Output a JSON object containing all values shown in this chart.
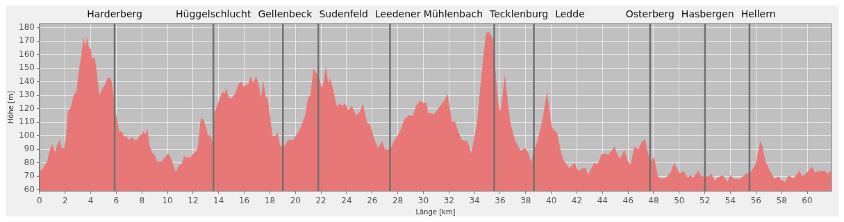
{
  "chart_data": {
    "type": "area",
    "xlabel": "Länge [km]",
    "ylabel": "Höhe [m]",
    "xlim": [
      0,
      61.9
    ],
    "ylim": [
      59,
      183
    ],
    "xticks": [
      0,
      2,
      4,
      6,
      8,
      10,
      12,
      14,
      16,
      18,
      20,
      22,
      24,
      26,
      28,
      30,
      32,
      34,
      36,
      38,
      40,
      42,
      44,
      46,
      48,
      50,
      52,
      54,
      56,
      58,
      60
    ],
    "yticks": [
      60,
      70,
      80,
      90,
      100,
      110,
      120,
      130,
      140,
      150,
      160,
      170,
      180
    ],
    "grid": true,
    "legend": false,
    "x": [
      0,
      0.2,
      0.6,
      0.76,
      0.98,
      1.12,
      1.2,
      1.36,
      1.57,
      1.72,
      1.93,
      2.06,
      2.22,
      2.44,
      2.66,
      2.9,
      3.02,
      3.24,
      3.44,
      3.56,
      3.71,
      3.83,
      4.01,
      4.1,
      4.32,
      4.5,
      4.68,
      4.92,
      5.06,
      5.33,
      5.52,
      5.64,
      5.82,
      6.0,
      6.24,
      6.46,
      6.6,
      6.76,
      6.96,
      7.14,
      7.27,
      7.4,
      7.63,
      7.81,
      7.99,
      8.14,
      8.26,
      8.44,
      8.59,
      8.84,
      8.99,
      9.2,
      9.57,
      9.71,
      10.07,
      10.34,
      10.65,
      10.89,
      11.1,
      11.3,
      11.52,
      11.79,
      12.03,
      12.2,
      12.35,
      12.46,
      12.6,
      12.82,
      13.06,
      13.15,
      13.33,
      13.51,
      13.69,
      13.87,
      14.09,
      14.32,
      14.45,
      14.59,
      14.81,
      15.04,
      15.32,
      15.59,
      15.77,
      15.95,
      16.13,
      16.31,
      16.49,
      16.71,
      16.91,
      17.12,
      17.31,
      17.49,
      17.67,
      17.85,
      18.21,
      18.48,
      18.61,
      18.79,
      19.12,
      19.44,
      19.82,
      20.18,
      20.45,
      20.63,
      20.76,
      20.99,
      21.17,
      21.41,
      21.59,
      21.81,
      22.08,
      22.2,
      22.38,
      22.56,
      22.71,
      22.98,
      23.25,
      23.43,
      23.65,
      23.88,
      24.12,
      24.42,
      24.73,
      25.05,
      25.27,
      25.6,
      25.87,
      26.14,
      26.46,
      26.77,
      27.0,
      27.4,
      27.76,
      28.12,
      28.52,
      28.84,
      29.21,
      29.42,
      29.75,
      30.02,
      30.23,
      30.38,
      30.83,
      31.23,
      31.64,
      31.88,
      32.24,
      32.46,
      32.73,
      33.0,
      33.45,
      33.75,
      34.17,
      34.53,
      34.89,
      35.13,
      35.43,
      35.85,
      36.03,
      36.37,
      36.79,
      37.15,
      37.6,
      37.96,
      38.23,
      38.41,
      38.68,
      38.95,
      39.31,
      39.67,
      40.04,
      40.46,
      40.73,
      41.0,
      41.42,
      41.82,
      42.09,
      42.45,
      42.72,
      42.85,
      43.36,
      43.63,
      43.9,
      44.17,
      44.44,
      44.71,
      44.93,
      45.26,
      45.44,
      45.71,
      45.98,
      46.2,
      46.49,
      46.79,
      47.1,
      47.34,
      47.61,
      47.79,
      47.97,
      48.11,
      48.33,
      48.6,
      48.96,
      49.33,
      49.6,
      50.05,
      50.32,
      50.68,
      50.86,
      51.08,
      51.5,
      51.73,
      52.31,
      52.53,
      52.76,
      53.03,
      53.4,
      53.76,
      53.98,
      54.3,
      54.75,
      55.21,
      55.57,
      55.93,
      56.15,
      56.33,
      56.51,
      56.74,
      57.1,
      57.47,
      57.74,
      58.01,
      58.28,
      58.55,
      58.91,
      59.37,
      59.64,
      60.0,
      60.36,
      60.63,
      60.99,
      61.35,
      61.62,
      61.89
    ],
    "series": [
      {
        "color": "#e87878",
        "values": [
          74,
          75,
          81,
          88,
          94,
          91,
          87,
          93,
          97,
          91,
          91,
          98,
          118,
          121,
          130,
          133,
          145,
          158,
          173,
          167,
          173,
          166,
          164,
          157,
          158,
          145,
          130,
          135,
          137,
          143,
          143,
          140,
          127,
          115,
          103,
          103,
          99,
          100,
          97,
          98,
          99,
          97,
          97,
          100,
          101,
          104,
          101,
          105,
          93,
          87,
          86,
          81,
          81,
          83,
          87,
          82,
          73,
          78,
          79,
          85,
          84,
          84,
          87,
          88,
          91,
          100,
          113,
          112,
          105,
          100,
          101,
          95,
          117,
          122,
          128,
          133,
          131,
          135,
          128,
          128,
          132,
          139,
          140,
          136,
          138,
          138,
          144,
          139,
          144,
          139,
          128,
          141,
          129,
          127,
          100,
          100,
          103,
          93,
          92,
          97,
          97,
          102,
          107,
          112,
          115,
          128,
          130,
          150,
          147,
          144,
          135,
          140,
          152,
          139,
          143,
          133,
          121,
          124,
          122,
          124,
          119,
          122,
          115,
          118,
          124,
          110,
          108,
          98,
          91,
          96,
          90,
          90,
          97,
          102,
          112,
          115,
          115,
          122,
          126,
          124,
          125,
          117,
          116,
          121,
          126,
          131,
          110,
          111,
          103,
          97,
          96,
          87,
          108,
          144,
          176,
          177,
          172,
          124,
          118,
          145,
          110,
          97,
          89,
          91,
          87,
          80,
          90,
          97,
          112,
          133,
          106,
          102,
          89,
          81,
          76,
          80,
          74,
          76,
          76,
          71,
          80,
          79,
          86,
          87,
          86,
          89,
          92,
          84,
          84,
          90,
          81,
          79,
          92,
          90,
          96,
          97,
          85,
          81,
          84,
          81,
          70,
          68,
          69,
          73,
          80,
          72,
          74,
          69,
          71,
          69,
          74,
          70,
          70,
          72,
          67,
          69,
          71,
          66,
          71,
          68,
          68,
          72,
          73,
          78,
          87,
          96,
          92,
          81,
          74,
          68,
          70,
          67,
          66,
          71,
          68,
          74,
          70,
          73,
          77,
          73,
          74,
          74,
          72,
          74
        ]
      }
    ],
    "ref_lines": [
      {
        "axis": "x",
        "value": 5.87,
        "label": "Harderberg",
        "color": "#707070"
      },
      {
        "axis": "x",
        "value": 13.59,
        "label": "Hüggelschlucht",
        "color": "#707070"
      },
      {
        "axis": "x",
        "value": 19.02,
        "label": "Gellenbeck",
        "color": "#707070"
      },
      {
        "axis": "x",
        "value": 21.79,
        "label": "Sudenfeld",
        "color": "#707070"
      },
      {
        "axis": "x",
        "value": 27.39,
        "label": "Leedener Mühlenbach",
        "color": "#707070"
      },
      {
        "axis": "x",
        "value": 35.54,
        "label": "Tecklenburg",
        "color": "#707070"
      },
      {
        "axis": "x",
        "value": 38.64,
        "label": "Ledde",
        "color": "#707070"
      },
      {
        "axis": "x",
        "value": 47.72,
        "label": "Osterberg",
        "color": "#707070"
      },
      {
        "axis": "x",
        "value": 52.01,
        "label": "Hasbergen",
        "color": "#707070"
      },
      {
        "axis": "x",
        "value": 55.49,
        "label": "Hellern",
        "color": "#707070"
      }
    ]
  }
}
